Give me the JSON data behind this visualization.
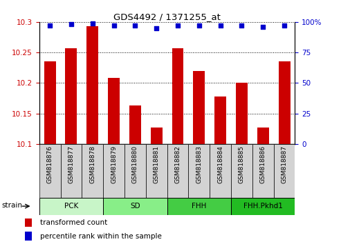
{
  "title": "GDS4492 / 1371255_at",
  "samples": [
    "GSM818876",
    "GSM818877",
    "GSM818878",
    "GSM818879",
    "GSM818880",
    "GSM818881",
    "GSM818882",
    "GSM818883",
    "GSM818884",
    "GSM818885",
    "GSM818886",
    "GSM818887"
  ],
  "red_values": [
    10.235,
    10.257,
    10.293,
    10.208,
    10.163,
    10.127,
    10.257,
    10.22,
    10.178,
    10.2,
    10.127,
    10.235
  ],
  "blue_values": [
    97,
    98,
    99,
    97,
    97,
    95,
    97,
    97,
    97,
    97,
    96,
    97
  ],
  "ylim_left": [
    10.1,
    10.3
  ],
  "ylim_right": [
    0,
    100
  ],
  "yticks_left": [
    10.1,
    10.15,
    10.2,
    10.25,
    10.3
  ],
  "yticks_right": [
    0,
    25,
    50,
    75,
    100
  ],
  "groups": [
    {
      "label": "PCK",
      "start": 0,
      "end": 3,
      "color": "#c8f5c8"
    },
    {
      "label": "SD",
      "start": 3,
      "end": 6,
      "color": "#88ee88"
    },
    {
      "label": "FHH",
      "start": 6,
      "end": 9,
      "color": "#44cc44"
    },
    {
      "label": "FHH.Pkhd1",
      "start": 9,
      "end": 12,
      "color": "#22bb22"
    }
  ],
  "bar_color": "#cc0000",
  "dot_color": "#0000cc",
  "bg_color": "#d3d3d3",
  "legend_red": "transformed count",
  "legend_blue": "percentile rank within the sample",
  "strain_label": "strain"
}
